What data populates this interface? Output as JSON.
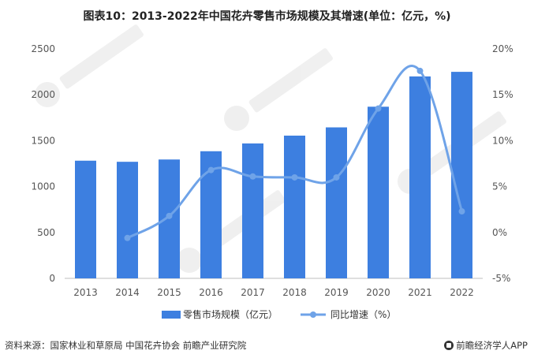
{
  "header": {
    "title": "图表10：2013-2022年中国花卉零售市场规模及其增速(单位：亿元，%)"
  },
  "footer": {
    "source": "资料来源：国家林业和草原局 中国花卉协会 前瞻产业研究院",
    "brand": "前瞻经济学人APP"
  },
  "colors": {
    "bar": "#3d7fe0",
    "line": "#6fa3e8",
    "axis_text": "#555555",
    "grid": "#e6e6e6"
  },
  "chart_data": {
    "type": "bar",
    "categories": [
      "2013",
      "2014",
      "2015",
      "2016",
      "2017",
      "2018",
      "2019",
      "2020",
      "2021",
      "2022"
    ],
    "series": [
      {
        "name": "零售市场规模（亿元）",
        "type": "bar",
        "axis": "left",
        "values": [
          1282,
          1270,
          1295,
          1385,
          1470,
          1555,
          1645,
          1870,
          2200,
          2250
        ]
      },
      {
        "name": "同比增速（%）",
        "type": "line",
        "axis": "right",
        "values": [
          null,
          -0.6,
          1.8,
          6.8,
          6.1,
          6.0,
          6.0,
          13.5,
          17.6,
          2.3
        ]
      }
    ],
    "y_left": {
      "min": 0,
      "max": 2500,
      "ticks": [
        "0",
        "500",
        "1000",
        "1500",
        "2000",
        "2500"
      ]
    },
    "y_right": {
      "min": -5,
      "max": 20,
      "ticks": [
        "-5%",
        "0%",
        "5%",
        "10%",
        "15%",
        "20%"
      ]
    },
    "legend_position": "bottom",
    "grid": false
  }
}
